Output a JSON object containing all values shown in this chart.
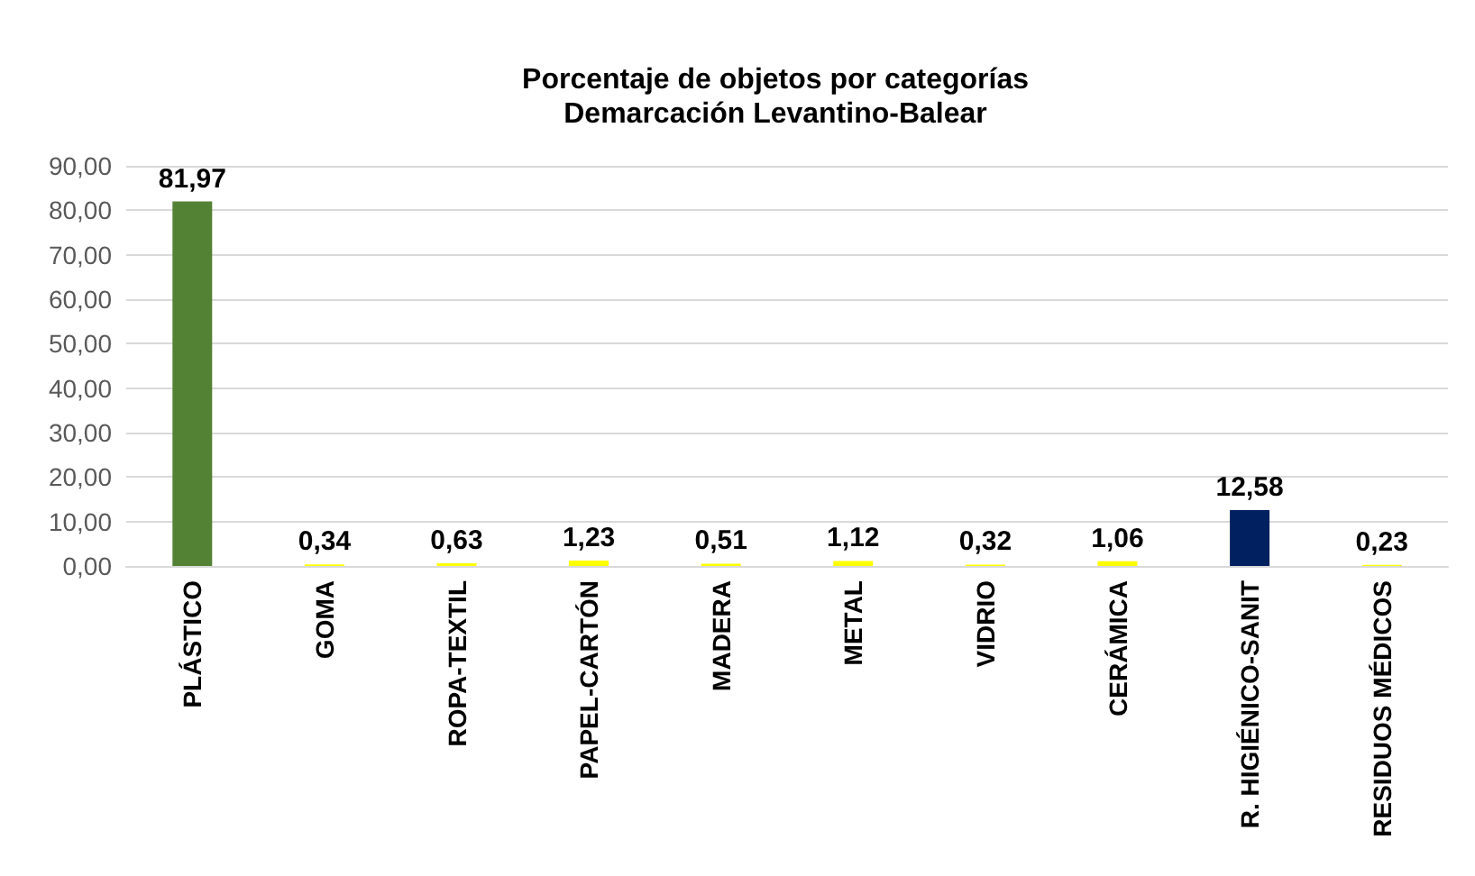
{
  "chart_data": {
    "type": "bar",
    "title": "Porcentaje de objetos por categorías\nDemarcación Levantino-Balear",
    "categories": [
      "PLÁSTICO",
      "GOMA",
      "ROPA-TEXTIL",
      "PAPEL-CARTÓN",
      "MADERA",
      "METAL",
      "VIDRIO",
      "CERÁMICA",
      "R. HIGIÉNICO-SANIT",
      "RESIDUOS MÉDICOS"
    ],
    "values": [
      81.97,
      0.34,
      0.63,
      1.23,
      0.51,
      1.12,
      0.32,
      1.06,
      12.58,
      0.23
    ],
    "value_labels": [
      "81,97",
      "0,34",
      "0,63",
      "1,23",
      "0,51",
      "1,12",
      "0,32",
      "1,06",
      "12,58",
      "0,23"
    ],
    "colors": [
      "#548235",
      "#ffff00",
      "#ffff00",
      "#ffff00",
      "#ffff00",
      "#ffff00",
      "#ffff00",
      "#ffff00",
      "#002060",
      "#ffff00"
    ],
    "ylim": [
      0,
      90
    ],
    "yticks": [
      {
        "value": 0,
        "label": "0,00"
      },
      {
        "value": 10,
        "label": "10,00"
      },
      {
        "value": 20,
        "label": "20,00"
      },
      {
        "value": 30,
        "label": "30,00"
      },
      {
        "value": 40,
        "label": "40,00"
      },
      {
        "value": 50,
        "label": "50,00"
      },
      {
        "value": 60,
        "label": "60,00"
      },
      {
        "value": 70,
        "label": "70,00"
      },
      {
        "value": 80,
        "label": "80,00"
      },
      {
        "value": 90,
        "label": "90,00"
      }
    ],
    "grid": "y"
  }
}
